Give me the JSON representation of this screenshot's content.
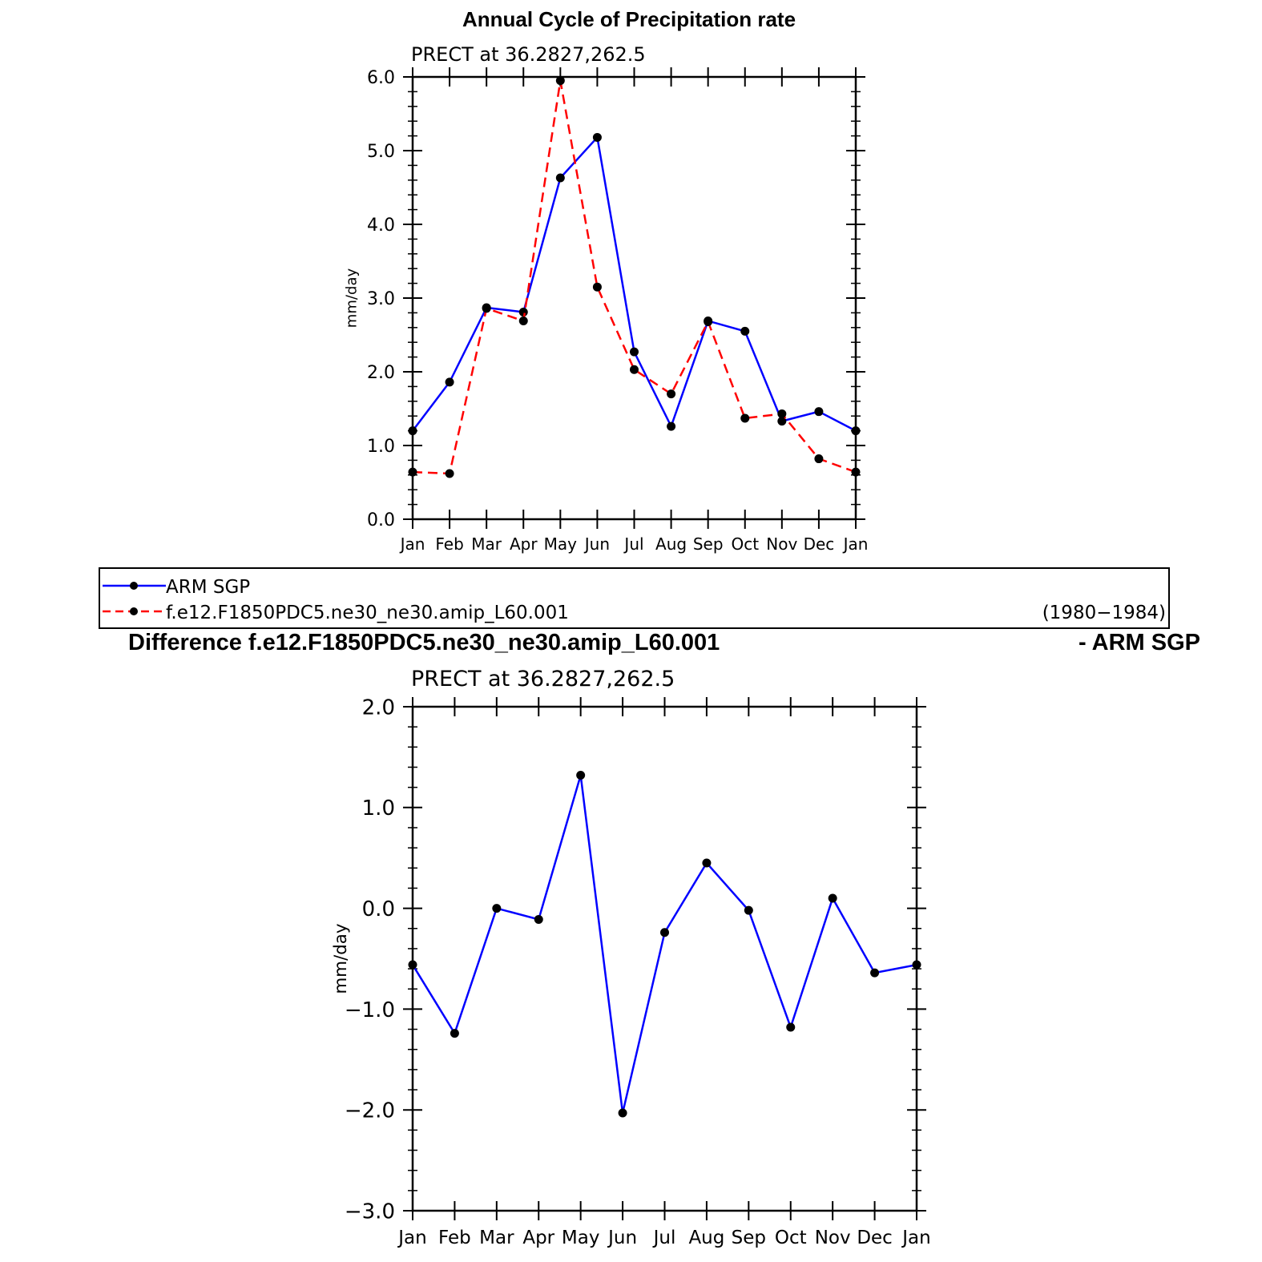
{
  "colors": {
    "arm": "#0000ff",
    "model": "#ff0000",
    "marker": "#000000",
    "axis": "#000000"
  },
  "chart_data": [
    {
      "type": "line",
      "title": "Annual Cycle of Precipitation rate",
      "subtitle": "PRECT at 36.2827,262.5",
      "xlabel": "",
      "ylabel": "mm/day",
      "categories": [
        "Jan",
        "Feb",
        "Mar",
        "Apr",
        "May",
        "Jun",
        "Jul",
        "Aug",
        "Sep",
        "Oct",
        "Nov",
        "Dec",
        "Jan"
      ],
      "ylim": [
        0,
        6
      ],
      "yticks": [
        "0.0",
        "1.0",
        "2.0",
        "3.0",
        "4.0",
        "5.0",
        "6.0"
      ],
      "series": [
        {
          "name": "ARM SGP",
          "style": "solid",
          "color": "#0000ff",
          "values": [
            1.2,
            1.86,
            2.87,
            2.81,
            4.63,
            5.18,
            2.27,
            1.26,
            2.69,
            2.55,
            1.33,
            1.46,
            1.2
          ]
        },
        {
          "name": "f.e12.F1850PDC5.ne30_ne30.amip_L60.001",
          "style": "dashed",
          "color": "#ff0000",
          "values": [
            0.64,
            0.62,
            2.86,
            2.69,
            5.95,
            3.15,
            2.03,
            1.7,
            2.68,
            1.37,
            1.43,
            0.82,
            0.64
          ]
        }
      ],
      "legend": {
        "position": "bottom",
        "entries": [
          "ARM SGP",
          "f.e12.F1850PDC5.ne30_ne30.amip_L60.001"
        ],
        "period": "(1980−1984)"
      },
      "grid": false
    },
    {
      "type": "line",
      "title": "Difference f.e12.F1850PDC5.ne30_ne30.amip_L60.001",
      "title_right": "- ARM SGP",
      "subtitle": "PRECT at 36.2827,262.5",
      "xlabel": "",
      "ylabel": "mm/day",
      "categories": [
        "Jan",
        "Feb",
        "Mar",
        "Apr",
        "May",
        "Jun",
        "Jul",
        "Aug",
        "Sep",
        "Oct",
        "Nov",
        "Dec",
        "Jan"
      ],
      "ylim": [
        -3,
        2
      ],
      "yticks": [
        "−3.0",
        "−2.0",
        "−1.0",
        "0.0",
        "1.0",
        "2.0"
      ],
      "series": [
        {
          "color": "#0000ff",
          "style": "solid",
          "values": [
            -0.56,
            -1.24,
            0.0,
            -0.11,
            1.32,
            -2.03,
            -0.24,
            0.45,
            -0.02,
            -1.18,
            0.1,
            -0.64,
            -0.56
          ]
        }
      ],
      "grid": false
    }
  ]
}
